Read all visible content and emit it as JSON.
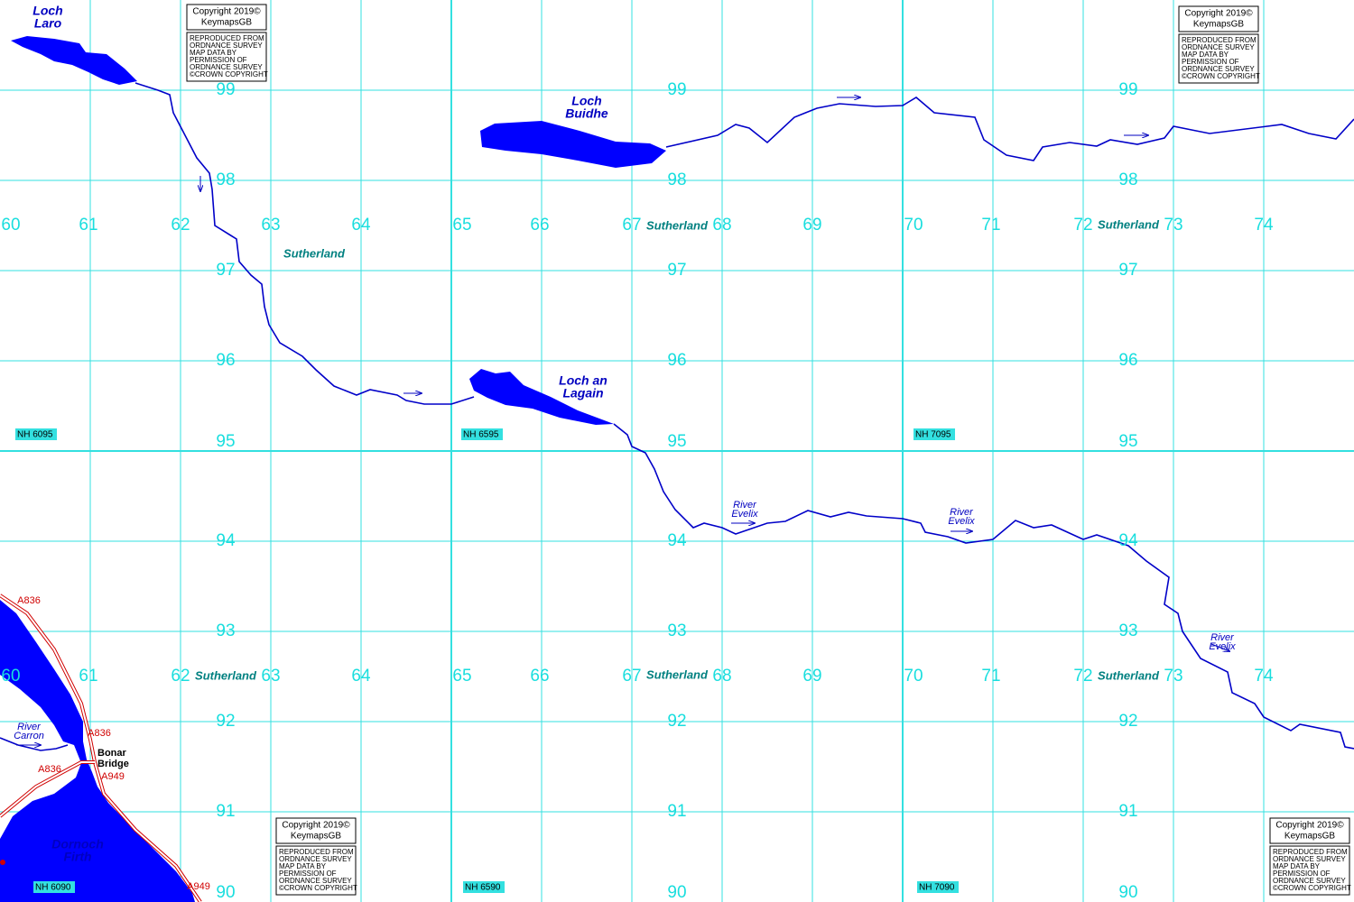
{
  "grid": {
    "eastings": [
      60,
      61,
      62,
      63,
      64,
      65,
      66,
      67,
      68,
      69,
      70,
      71,
      72,
      73,
      74
    ],
    "northings": [
      99,
      98,
      97,
      96,
      95,
      94,
      93,
      92,
      91,
      90
    ]
  },
  "grid_refs": [
    "NH 6095",
    "NH 6595",
    "NH 7095",
    "NH 6090",
    "NH 6590",
    "NH 7090"
  ],
  "water_labels": [
    {
      "lines": [
        "Loch",
        "Laro"
      ]
    },
    {
      "lines": [
        "Loch",
        "Buidhe"
      ]
    },
    {
      "lines": [
        "Loch an",
        "Lagain"
      ]
    },
    {
      "lines": [
        "Dornoch",
        "Firth"
      ]
    }
  ],
  "river_labels": [
    {
      "lines": [
        "River",
        "Carron"
      ]
    },
    {
      "lines": [
        "River",
        "Evelix"
      ]
    },
    {
      "lines": [
        "River",
        "Evelix"
      ]
    },
    {
      "lines": [
        "River",
        "Evelix"
      ]
    }
  ],
  "regions": [
    "Sutherland",
    "Sutherland",
    "Sutherland",
    "Sutherland",
    "Sutherland",
    "Sutherland"
  ],
  "roads": [
    "A836",
    "A836",
    "A836",
    "A949",
    "A949"
  ],
  "places": [
    {
      "lines": [
        "Bonar",
        "Bridge"
      ]
    }
  ],
  "copyright": [
    {
      "line1": "Copyright 2019©",
      "line2": "KeymapsGB",
      "notice": [
        "REPRODUCED FROM",
        "ORDNANCE SURVEY",
        "MAP DATA BY",
        "PERMISSION OF",
        "ORDNANCE SURVEY",
        "©CROWN COPYRIGHT"
      ]
    },
    {
      "line1": "Copyright 2019©",
      "line2": "KeymapsGB",
      "notice": [
        "REPRODUCED FROM",
        "ORDNANCE SURVEY",
        "MAP DATA BY",
        "PERMISSION OF",
        "ORDNANCE SURVEY",
        "©CROWN COPYRIGHT"
      ]
    },
    {
      "line1": "Copyright 2019©",
      "line2": "KeymapsGB",
      "notice": [
        "REPRODUCED FROM",
        "ORDNANCE SURVEY",
        "MAP DATA BY",
        "PERMISSION OF",
        "ORDNANCE SURVEY",
        "©CROWN COPYRIGHT"
      ]
    },
    {
      "line1": "Copyright 2019©",
      "line2": "KeymapsGB",
      "notice": [
        "REPRODUCED FROM",
        "ORDNANCE SURVEY",
        "MAP DATA BY",
        "PERMISSION OF",
        "ORDNANCE SURVEY",
        "©CROWN COPYRIGHT"
      ]
    }
  ]
}
